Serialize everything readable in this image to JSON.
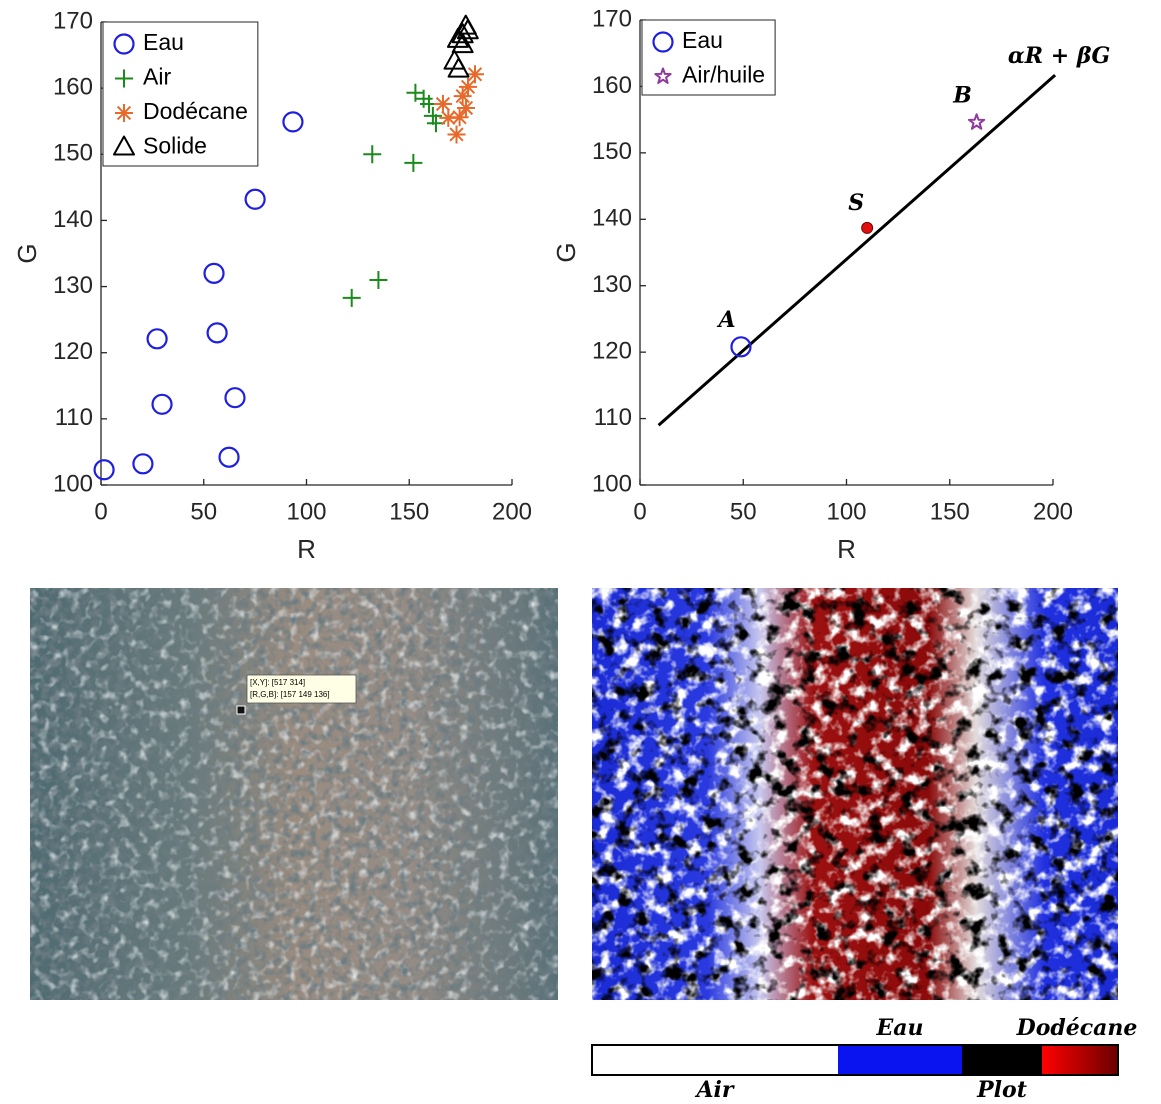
{
  "chart_data": [
    {
      "type": "scatter",
      "xlabel": "R",
      "ylabel": "G",
      "xlim": [
        0,
        200
      ],
      "ylim": [
        100,
        170
      ],
      "xticks": [
        0,
        50,
        100,
        150,
        200
      ],
      "yticks": [
        100,
        110,
        120,
        130,
        140,
        150,
        160,
        170
      ],
      "legend": "upper left",
      "series": [
        {
          "name": "Eau",
          "color": "#1f1fe0",
          "marker": "circle",
          "x": [
            1.5,
            20.4,
            27.3,
            29.7,
            55,
            56.5,
            62.3,
            65.2,
            75,
            93.4
          ],
          "values": [
            102.3,
            103.2,
            122.1,
            112.2,
            132,
            123,
            104.2,
            113.2,
            143.2,
            154.9
          ]
        },
        {
          "name": "Air",
          "color": "#1a8a1a",
          "marker": "plus",
          "x": [
            122,
            132,
            135,
            152,
            153,
            157,
            159.6,
            161.5,
            163
          ],
          "values": [
            128.3,
            150,
            131,
            148.7,
            159.3,
            158.4,
            157.6,
            155.8,
            154.7
          ]
        },
        {
          "name": "Dodécane",
          "color": "#e8692a",
          "marker": "asterisk",
          "x": [
            166.4,
            169,
            173,
            176,
            177.6,
            178.6,
            182,
            174.5
          ],
          "values": [
            157.6,
            155.5,
            153,
            158.8,
            157,
            160.2,
            162.1,
            155.6
          ]
        },
        {
          "name": "Solide",
          "color": "#000000",
          "marker": "triangle",
          "x": [
            172,
            173.7,
            176,
            177.5,
            174,
            176,
            178.5
          ],
          "values": [
            164,
            167.3,
            168,
            169.3,
            162.8,
            166.5,
            168.6
          ]
        }
      ]
    },
    {
      "type": "scatter",
      "xlabel": "R",
      "ylabel": "G",
      "xlim": [
        0,
        200
      ],
      "ylim": [
        100,
        170
      ],
      "xticks": [
        0,
        50,
        100,
        150,
        200
      ],
      "yticks": [
        100,
        110,
        120,
        130,
        140,
        150,
        160,
        170
      ],
      "legend": "upper left",
      "series": [
        {
          "name": "Eau",
          "color": "#1f1fe0",
          "marker": "circle",
          "x": [
            48.9
          ],
          "values": [
            120.8
          ],
          "point_labels": [
            "A"
          ]
        },
        {
          "name": "Air/huile",
          "color": "#8e3a9e",
          "marker": "star",
          "x": [
            163
          ],
          "values": [
            154.6
          ],
          "point_labels": [
            "B"
          ]
        }
      ],
      "line": {
        "x": [
          9,
          201
        ],
        "y": [
          109,
          161.7
        ],
        "label": "αR + βG",
        "color": "#000000"
      },
      "point": {
        "x": 110,
        "y": 138.7,
        "label": "S",
        "color": "#e01010"
      }
    }
  ],
  "image_tooltip": {
    "lines": [
      "[X,Y]: [517 314]",
      "[R,G,B]: [157 149 136]"
    ]
  },
  "colorbar": {
    "segments": [
      {
        "name": "Air",
        "color": "#ffffff"
      },
      {
        "name": "Eau",
        "color": "#0a14f0"
      },
      {
        "name": "Plot",
        "color": "#000000"
      },
      {
        "name": "Dodécane",
        "color": "#e00000"
      }
    ]
  }
}
